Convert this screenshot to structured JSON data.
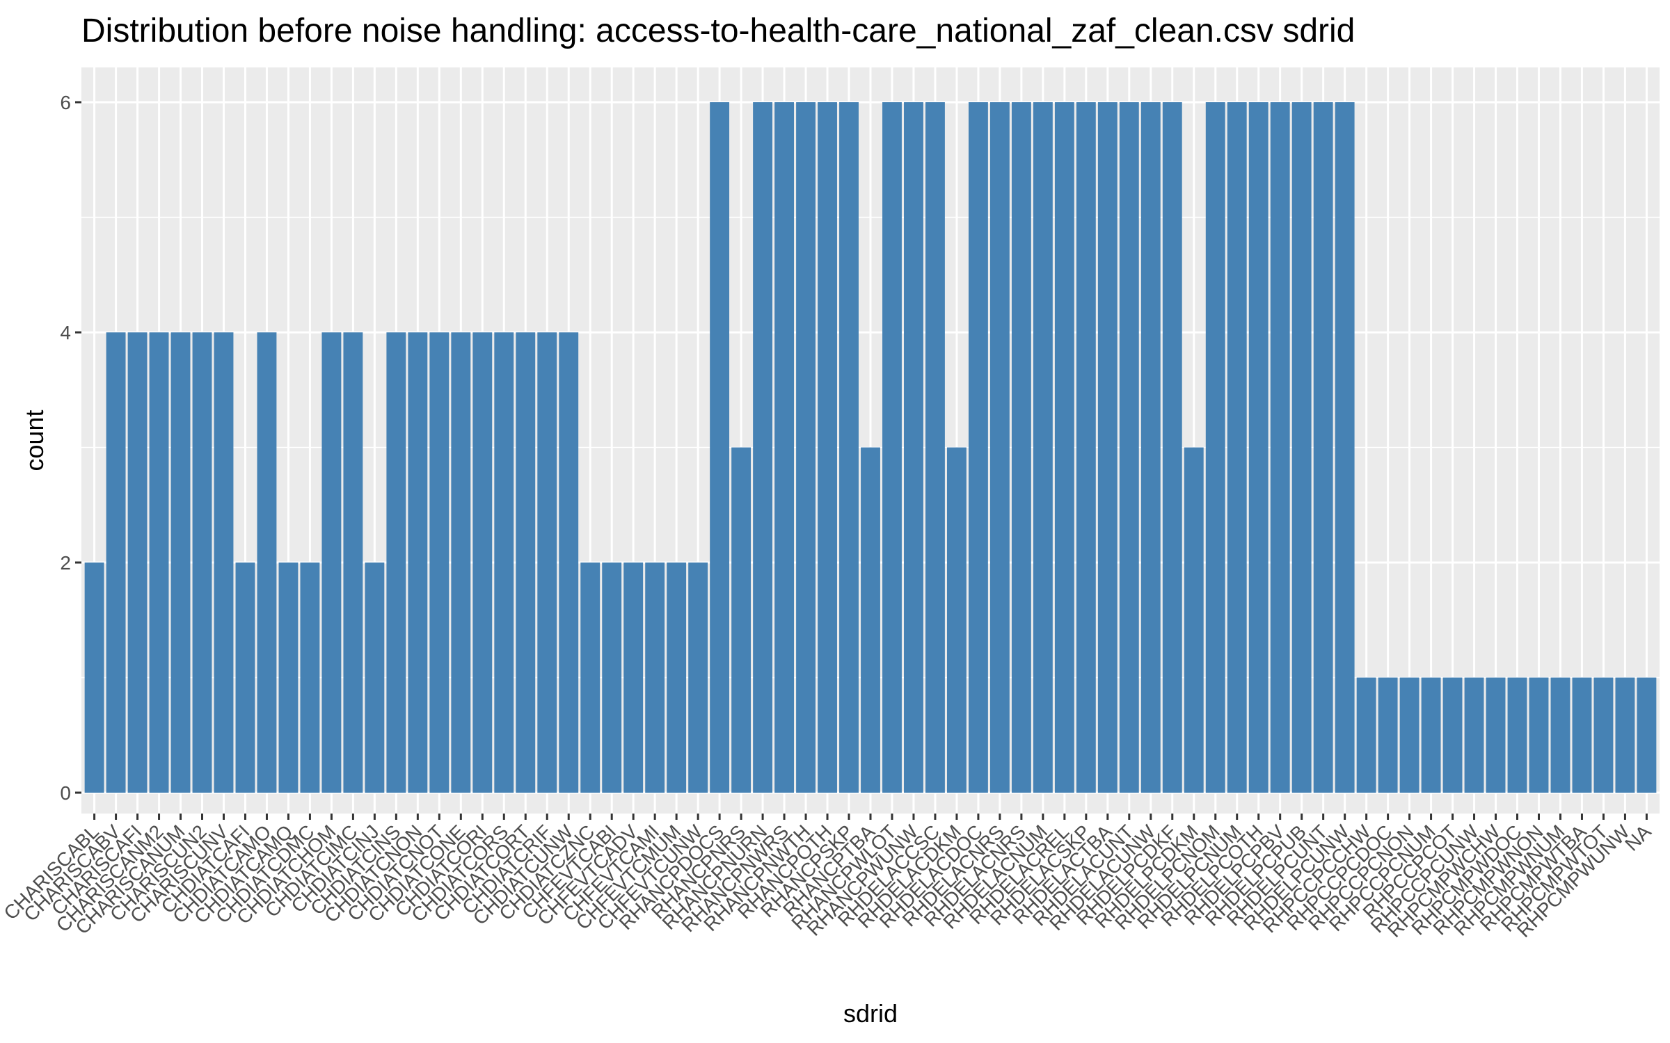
{
  "chart_data": {
    "type": "bar",
    "title": "Distribution before noise handling: access-to-health-care_national_zaf_clean.csv sdrid",
    "xlabel": "sdrid",
    "ylabel": "count",
    "ylim": [
      0,
      6.3
    ],
    "yticks": [
      0,
      2,
      4,
      6
    ],
    "grid": true,
    "legend": "none",
    "bar_color": "#4682B4",
    "panel_color": "#EBEBEB",
    "grid_color": "#FFFFFF",
    "categories": [
      "CHARISCABL",
      "CHARISCABV",
      "CHARISCAFI",
      "CHARISCANM2",
      "CHARISCANUM",
      "CHARISCUN2",
      "CHARISCUNV",
      "CHDIATCAFI",
      "CHDIATCAMO",
      "CHDIATCAMQ",
      "CHDIATCDMC",
      "CHDIATCHOM",
      "CHDIATCIMC",
      "CHDIATCINJ",
      "CHDIATCINS",
      "CHDIATCNON",
      "CHDIATCNOT",
      "CHDIATCONE",
      "CHDIATCORI",
      "CHDIATCORS",
      "CHDIATCORT",
      "CHDIATCRIF",
      "CHDIATCUNW",
      "CHDIATCZNC",
      "CHFEVTCABI",
      "CHFEVTCADV",
      "CHFEVTCAMI",
      "CHFEVTCMUM",
      "CHFEVTCUNW",
      "RHANCPDOCS",
      "RHANCPNRS",
      "RHANCPNURN",
      "RHANCPNWRS",
      "RHANCPNWTH",
      "RHANCPOTH",
      "RHANCPSKP",
      "RHANCPTBA",
      "RHANCPWLOT",
      "RHANCPWUNW",
      "RHDELACCSC",
      "RHDELACDKM",
      "RHDELACDOC",
      "RHDELACNRS",
      "RHDELACNRS",
      "RHDELACNUM",
      "RHDELACREL",
      "RHDELACSKP",
      "RHDELACTBA",
      "RHDELACUNT",
      "RHDELACUNW",
      "RHDELPCDKF",
      "RHDELPCDKM",
      "RHDELPCNOM",
      "RHDELPCNUM",
      "RHDELPCOTH",
      "RHDELPCPBV",
      "RHDELPCPUB",
      "RHDELPCUNT",
      "RHDELPCUNW",
      "RHPCCPCCHW",
      "RHPCCPCDOC",
      "RHPCCPCNON",
      "RHPCCPCNUM",
      "RHPCCPCOT",
      "RHPCCPCUNW",
      "RHPCMPWCHW",
      "RHPCMPWDOC",
      "RHPCMPWNON",
      "RHPCMPWNUM",
      "RHPCMPWTBA",
      "RHPCMPWTOT",
      "RHPCMPWUNW",
      "NA"
    ],
    "values": [
      2,
      4,
      4,
      4,
      4,
      4,
      4,
      2,
      4,
      2,
      2,
      4,
      4,
      2,
      4,
      4,
      4,
      4,
      4,
      4,
      4,
      4,
      4,
      2,
      2,
      2,
      2,
      2,
      2,
      6,
      3,
      6,
      6,
      6,
      6,
      6,
      3,
      6,
      6,
      6,
      3,
      6,
      6,
      6,
      6,
      6,
      6,
      6,
      6,
      6,
      6,
      3,
      6,
      6,
      6,
      6,
      6,
      6,
      6,
      1,
      1,
      1,
      1,
      1,
      1,
      1,
      1,
      1,
      1,
      1,
      1,
      1,
      1
    ]
  }
}
